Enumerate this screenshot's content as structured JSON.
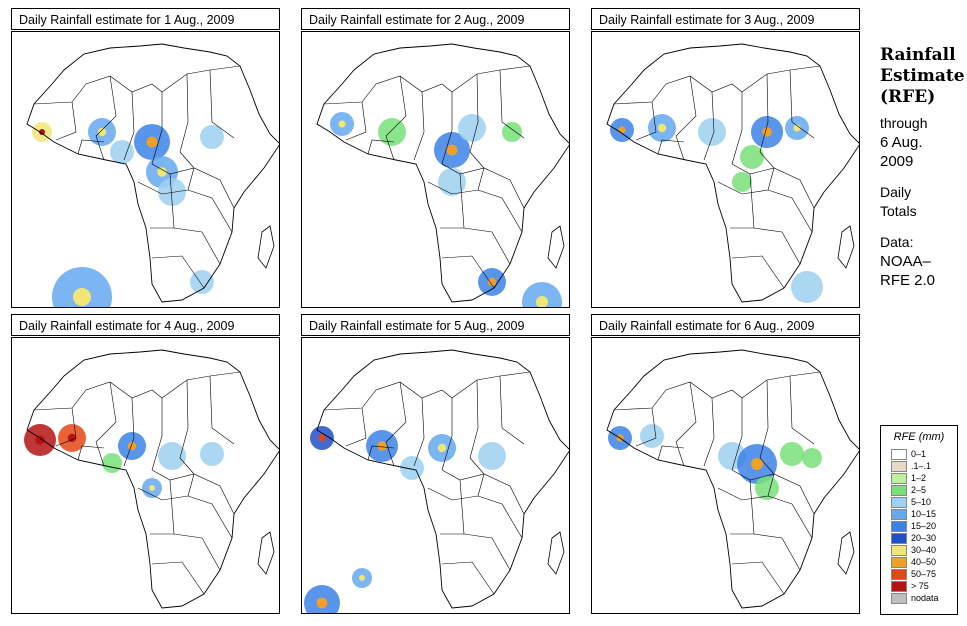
{
  "panels": [
    {
      "title": "Daily Rainfall estimate for  1 Aug., 2009"
    },
    {
      "title": "Daily Rainfall estimate for  2 Aug., 2009"
    },
    {
      "title": "Daily Rainfall estimate for  3 Aug., 2009"
    },
    {
      "title": "Daily Rainfall estimate for  4 Aug., 2009"
    },
    {
      "title": "Daily Rainfall estimate for  5 Aug., 2009"
    },
    {
      "title": "Daily Rainfall estimate for  6 Aug., 2009"
    }
  ],
  "sidebar": {
    "title_line1": "Rainfall",
    "title_line2": "Estimate",
    "title_line3": "(RFE)",
    "through": "through",
    "date_line1": "6 Aug.",
    "date_line2": "2009",
    "daily": "Daily",
    "totals": "Totals",
    "data_label": "Data:",
    "source_line1": "NOAA–",
    "source_line2": "RFE 2.0"
  },
  "legend": {
    "title": "RFE (mm)",
    "items": [
      {
        "label": "0–1",
        "color": "#ffffff"
      },
      {
        "label": ".1–.1",
        "color": "#e8d8c4"
      },
      {
        "label": "1–2",
        "color": "#bef0a0"
      },
      {
        "label": "2–5",
        "color": "#78e078"
      },
      {
        "label": "5–10",
        "color": "#9ed0f0"
      },
      {
        "label": "10–15",
        "color": "#64a8f0"
      },
      {
        "label": "15–20",
        "color": "#3c82e6"
      },
      {
        "label": "20–30",
        "color": "#1e50c8"
      },
      {
        "label": "30–40",
        "color": "#f0e678"
      },
      {
        "label": "40–50",
        "color": "#f0a028"
      },
      {
        "label": "50–75",
        "color": "#e64614"
      },
      {
        "label": "> 75",
        "color": "#b41414"
      },
      {
        "label": "nodata",
        "color": "#bebebe"
      }
    ]
  }
}
